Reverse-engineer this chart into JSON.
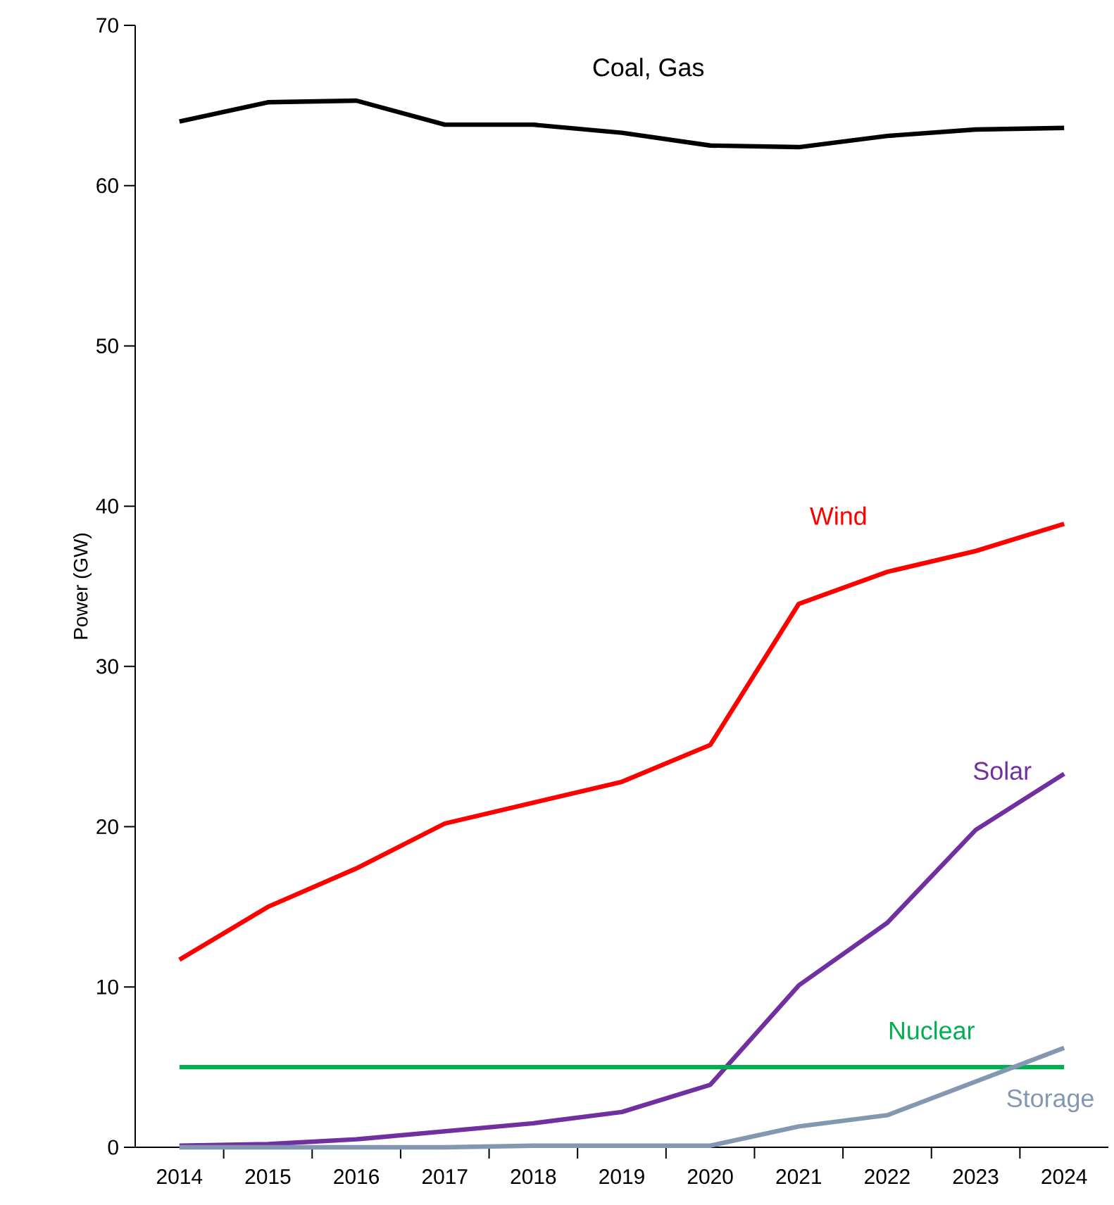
{
  "chart_data": {
    "type": "line",
    "ylabel": "Power (GW)",
    "x": [
      2014,
      2015,
      2016,
      2017,
      2018,
      2019,
      2020,
      2021,
      2022,
      2023,
      2024
    ],
    "xlim": [
      2013.5,
      2024.5
    ],
    "xticks": [
      2014,
      2015,
      2016,
      2017,
      2018,
      2019,
      2020,
      2021,
      2022,
      2023,
      2024
    ],
    "ylim": [
      0,
      70
    ],
    "yticks": [
      0,
      10,
      20,
      30,
      40,
      50,
      60,
      70
    ],
    "grid": false,
    "legend": false,
    "marker": "none",
    "line_style": "solid",
    "series": [
      {
        "name": "Coal, Gas",
        "color": "#000000",
        "values": [
          64.0,
          65.2,
          65.3,
          63.8,
          63.8,
          63.3,
          62.5,
          62.4,
          63.1,
          63.5,
          63.6
        ]
      },
      {
        "name": "Wind",
        "color": "#ff0000",
        "values": [
          11.7,
          15.0,
          17.4,
          20.2,
          21.5,
          22.8,
          25.1,
          33.9,
          35.9,
          37.2,
          38.9
        ]
      },
      {
        "name": "Solar",
        "color": "#7030a0",
        "values": [
          0.1,
          0.2,
          0.5,
          1.0,
          1.5,
          2.2,
          3.9,
          10.1,
          14.0,
          19.8,
          23.3
        ]
      },
      {
        "name": "Nuclear",
        "color": "#00b050",
        "values": [
          5.0,
          5.0,
          5.0,
          5.0,
          5.0,
          5.0,
          5.0,
          5.0,
          5.0,
          5.0,
          5.0
        ]
      },
      {
        "name": "Storage",
        "color": "#8497b0",
        "values": [
          0.0,
          0.0,
          0.0,
          0.0,
          0.1,
          0.1,
          0.1,
          1.3,
          2.0,
          4.1,
          6.2
        ]
      }
    ]
  }
}
